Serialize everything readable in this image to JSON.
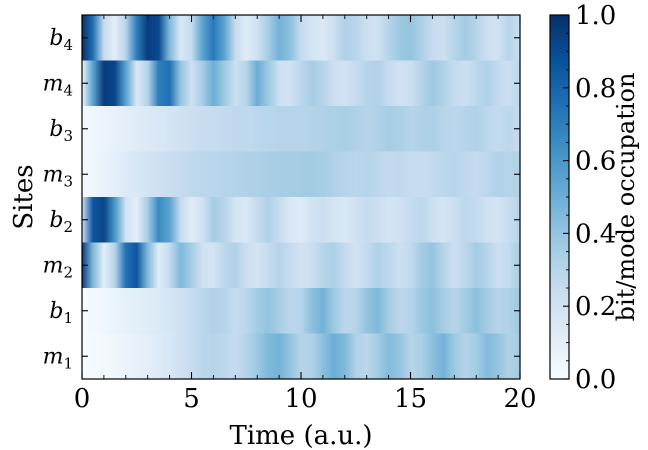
{
  "chart_data": {
    "type": "heatmap",
    "title": "",
    "xlabel": "Time (a.u.)",
    "ylabel": "Sites",
    "xlim": [
      0,
      20
    ],
    "x_ticks": [
      "0",
      "5",
      "10",
      "15",
      "20"
    ],
    "rows_top_to_bottom": [
      {
        "id": "b4",
        "base": "b",
        "sub": "4"
      },
      {
        "id": "m4",
        "base": "m",
        "sub": "4"
      },
      {
        "id": "b3",
        "base": "b",
        "sub": "3"
      },
      {
        "id": "m3",
        "base": "m",
        "sub": "3"
      },
      {
        "id": "b2",
        "base": "b",
        "sub": "2"
      },
      {
        "id": "m2",
        "base": "m",
        "sub": "2"
      },
      {
        "id": "b1",
        "base": "b",
        "sub": "1"
      },
      {
        "id": "m1",
        "base": "m",
        "sub": "1"
      }
    ],
    "colorbar": {
      "label": "bit/mode occupation",
      "range": [
        0.0,
        1.0
      ],
      "ticks": [
        "0.0",
        "0.2",
        "0.4",
        "0.6",
        "0.8",
        "1.0"
      ],
      "colormap": "Blues",
      "colors": [
        "#f7fbff",
        "#deebf7",
        "#c6dbef",
        "#9ecae1",
        "#6baed6",
        "#4292c6",
        "#2171b5",
        "#08519c",
        "#08306b"
      ]
    },
    "time_samples": [
      0,
      0.5,
      1,
      1.5,
      2,
      2.5,
      3,
      3.5,
      4,
      4.5,
      5,
      5.5,
      6,
      6.5,
      7,
      7.5,
      8,
      8.5,
      9,
      9.5,
      10,
      10.5,
      11,
      11.5,
      12,
      12.5,
      13,
      13.5,
      14,
      14.5,
      15,
      15.5,
      16,
      16.5,
      17,
      17.5,
      18,
      18.5,
      19,
      19.5,
      20
    ],
    "occupation": {
      "b4": [
        1.0,
        0.75,
        0.25,
        0.1,
        0.3,
        0.7,
        0.95,
        0.9,
        0.45,
        0.15,
        0.25,
        0.55,
        0.72,
        0.55,
        0.25,
        0.12,
        0.2,
        0.35,
        0.48,
        0.42,
        0.25,
        0.18,
        0.15,
        0.22,
        0.32,
        0.3,
        0.22,
        0.2,
        0.3,
        0.38,
        0.4,
        0.33,
        0.25,
        0.22,
        0.3,
        0.36,
        0.3,
        0.22,
        0.2,
        0.3,
        0.22
      ],
      "m4": [
        0.05,
        0.55,
        0.95,
        0.92,
        0.55,
        0.15,
        0.3,
        0.7,
        0.75,
        0.4,
        0.2,
        0.35,
        0.5,
        0.38,
        0.22,
        0.3,
        0.5,
        0.38,
        0.22,
        0.2,
        0.28,
        0.35,
        0.3,
        0.22,
        0.2,
        0.25,
        0.3,
        0.32,
        0.25,
        0.2,
        0.22,
        0.3,
        0.38,
        0.32,
        0.25,
        0.22,
        0.28,
        0.32,
        0.26,
        0.22,
        0.28
      ],
      "b3": [
        0.02,
        0.04,
        0.06,
        0.08,
        0.1,
        0.12,
        0.14,
        0.16,
        0.18,
        0.2,
        0.22,
        0.24,
        0.25,
        0.26,
        0.27,
        0.27,
        0.28,
        0.29,
        0.3,
        0.3,
        0.3,
        0.31,
        0.32,
        0.33,
        0.34,
        0.32,
        0.3,
        0.32,
        0.35,
        0.33,
        0.3,
        0.32,
        0.33,
        0.3,
        0.28,
        0.3,
        0.32,
        0.28,
        0.26,
        0.28,
        0.25
      ],
      "m3": [
        0.02,
        0.04,
        0.07,
        0.1,
        0.13,
        0.16,
        0.19,
        0.21,
        0.23,
        0.25,
        0.27,
        0.28,
        0.29,
        0.3,
        0.31,
        0.32,
        0.33,
        0.34,
        0.35,
        0.35,
        0.36,
        0.36,
        0.35,
        0.32,
        0.3,
        0.29,
        0.3,
        0.28,
        0.26,
        0.27,
        0.25,
        0.24,
        0.26,
        0.28,
        0.3,
        0.27,
        0.25,
        0.28,
        0.32,
        0.3,
        0.32
      ],
      "b2": [
        0.2,
        0.85,
        0.92,
        0.6,
        0.2,
        0.1,
        0.35,
        0.65,
        0.55,
        0.25,
        0.12,
        0.2,
        0.35,
        0.3,
        0.18,
        0.15,
        0.25,
        0.32,
        0.25,
        0.15,
        0.13,
        0.2,
        0.22,
        0.18,
        0.15,
        0.2,
        0.25,
        0.22,
        0.18,
        0.2,
        0.25,
        0.28,
        0.22,
        0.18,
        0.22,
        0.28,
        0.26,
        0.2,
        0.18,
        0.24,
        0.3
      ],
      "m2": [
        0.95,
        0.45,
        0.1,
        0.3,
        0.75,
        0.85,
        0.45,
        0.12,
        0.25,
        0.45,
        0.35,
        0.2,
        0.18,
        0.28,
        0.32,
        0.22,
        0.18,
        0.25,
        0.3,
        0.25,
        0.2,
        0.22,
        0.3,
        0.33,
        0.25,
        0.2,
        0.26,
        0.32,
        0.28,
        0.22,
        0.26,
        0.36,
        0.4,
        0.3,
        0.22,
        0.28,
        0.36,
        0.3,
        0.22,
        0.26,
        0.35
      ],
      "b1": [
        0.0,
        0.02,
        0.04,
        0.06,
        0.08,
        0.1,
        0.12,
        0.14,
        0.17,
        0.2,
        0.24,
        0.28,
        0.32,
        0.3,
        0.25,
        0.28,
        0.36,
        0.4,
        0.35,
        0.28,
        0.3,
        0.42,
        0.48,
        0.38,
        0.28,
        0.3,
        0.4,
        0.45,
        0.36,
        0.28,
        0.3,
        0.38,
        0.42,
        0.35,
        0.3,
        0.36,
        0.42,
        0.36,
        0.3,
        0.32,
        0.38
      ],
      "m1": [
        0.0,
        0.01,
        0.02,
        0.04,
        0.06,
        0.08,
        0.1,
        0.13,
        0.16,
        0.2,
        0.24,
        0.28,
        0.3,
        0.28,
        0.25,
        0.3,
        0.38,
        0.45,
        0.48,
        0.4,
        0.3,
        0.32,
        0.42,
        0.5,
        0.45,
        0.32,
        0.28,
        0.36,
        0.44,
        0.4,
        0.3,
        0.33,
        0.42,
        0.48,
        0.38,
        0.3,
        0.36,
        0.44,
        0.4,
        0.32,
        0.36
      ]
    }
  }
}
